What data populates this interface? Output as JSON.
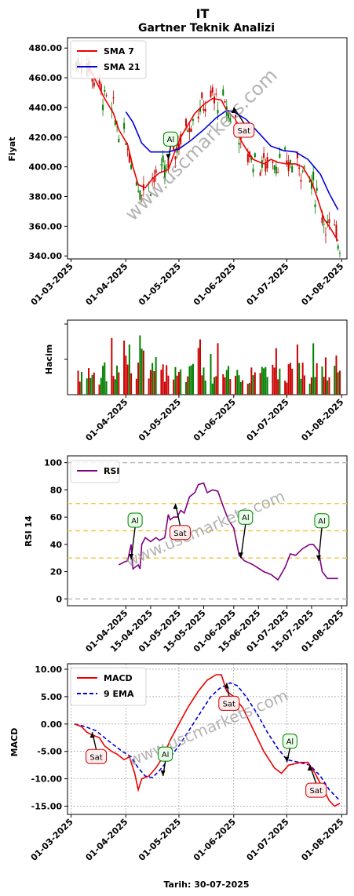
{
  "header": {
    "title": "IT",
    "subtitle": "Gartner Teknik Analizi"
  },
  "watermark": "www.uscmarkets.com",
  "footer": {
    "date_label": "Tarih: 30-07-2025"
  },
  "colors": {
    "up": "#008000",
    "down": "#cc0000",
    "sma7": "#ee0000",
    "sma21": "#0000dd",
    "rsi": "#800080",
    "macd": "#ee0000",
    "ema": "#0000dd"
  },
  "chart_data": [
    {
      "type": "candlestick",
      "ylabel": "Fiyat",
      "ylim": [
        338,
        487
      ],
      "yticks": [
        "340.00",
        "360.00",
        "380.00",
        "400.00",
        "420.00",
        "440.00",
        "460.00",
        "480.00"
      ],
      "xlim": [
        "2025-02-27",
        "2025-08-04"
      ],
      "xticks": [
        "01-03-2025",
        "01-04-2025",
        "01-05-2025",
        "01-06-2025",
        "01-07-2025",
        "01-08-2025"
      ],
      "legend": {
        "position": "top-left",
        "entries": [
          "SMA 7",
          "SMA 21"
        ]
      },
      "series": [
        {
          "name": "SMA 7",
          "points": [
            [
              "2025-03-10",
              470
            ],
            [
              "2025-03-15",
              458
            ],
            [
              "2025-03-20",
              446
            ],
            [
              "2025-03-25",
              436
            ],
            [
              "2025-03-28",
              425
            ],
            [
              "2025-04-02",
              415
            ],
            [
              "2025-04-05",
              400
            ],
            [
              "2025-04-08",
              388
            ],
            [
              "2025-04-12",
              386
            ],
            [
              "2025-04-16",
              392
            ],
            [
              "2025-04-20",
              396
            ],
            [
              "2025-04-25",
              398
            ],
            [
              "2025-04-28",
              408
            ],
            [
              "2025-05-02",
              420
            ],
            [
              "2025-05-06",
              428
            ],
            [
              "2025-05-10",
              436
            ],
            [
              "2025-05-15",
              442
            ],
            [
              "2025-05-20",
              446
            ],
            [
              "2025-05-25",
              445
            ],
            [
              "2025-05-28",
              438
            ],
            [
              "2025-06-02",
              432
            ],
            [
              "2025-06-05",
              418
            ],
            [
              "2025-06-08",
              412
            ],
            [
              "2025-06-12",
              405
            ],
            [
              "2025-06-18",
              402
            ],
            [
              "2025-06-22",
              405
            ],
            [
              "2025-06-26",
              403
            ],
            [
              "2025-07-01",
              402
            ],
            [
              "2025-07-06",
              402
            ],
            [
              "2025-07-10",
              400
            ],
            [
              "2025-07-15",
              390
            ],
            [
              "2025-07-18",
              380
            ],
            [
              "2025-07-22",
              365
            ],
            [
              "2025-07-26",
              358
            ],
            [
              "2025-07-30",
              350
            ]
          ]
        },
        {
          "name": "SMA 21",
          "points": [
            [
              "2025-04-01",
              437
            ],
            [
              "2025-04-05",
              430
            ],
            [
              "2025-04-10",
              416
            ],
            [
              "2025-04-15",
              410
            ],
            [
              "2025-04-20",
              410
            ],
            [
              "2025-04-25",
              410
            ],
            [
              "2025-05-01",
              412
            ],
            [
              "2025-05-08",
              418
            ],
            [
              "2025-05-15",
              425
            ],
            [
              "2025-05-22",
              433
            ],
            [
              "2025-05-28",
              438
            ],
            [
              "2025-06-01",
              437
            ],
            [
              "2025-06-08",
              432
            ],
            [
              "2025-06-15",
              423
            ],
            [
              "2025-06-22",
              414
            ],
            [
              "2025-06-29",
              411
            ],
            [
              "2025-07-06",
              410
            ],
            [
              "2025-07-13",
              405
            ],
            [
              "2025-07-20",
              395
            ],
            [
              "2025-07-25",
              382
            ],
            [
              "2025-07-30",
              371
            ]
          ]
        }
      ],
      "signals": [
        {
          "label": "Al",
          "date": "2025-04-25",
          "value": 405
        },
        {
          "label": "Sat",
          "date": "2025-06-01",
          "value": 440
        }
      ]
    },
    {
      "type": "bar",
      "ylabel": "Hacim",
      "xticks": [
        "01-04-2025",
        "01-05-2025",
        "01-06-2025",
        "01-07-2025",
        "01-08-2025"
      ]
    },
    {
      "type": "line",
      "ylabel": "RSI 14",
      "ylim": [
        -5,
        105
      ],
      "yticks": [
        "0",
        "20",
        "40",
        "60",
        "80",
        "100"
      ],
      "xticks": [
        "01-04-2025",
        "15-04-2025",
        "01-05-2025",
        "15-05-2025",
        "01-06-2025",
        "15-06-2025",
        "01-07-2025",
        "15-07-2025",
        "01-08-2025"
      ],
      "legend": {
        "position": "top-left",
        "entries": [
          "RSI"
        ]
      },
      "reference_lines": [
        0,
        30,
        50,
        70,
        100
      ],
      "series": [
        {
          "name": "RSI",
          "points": [
            [
              "2025-03-28",
              25
            ],
            [
              "2025-03-31",
              27
            ],
            [
              "2025-04-02",
              28
            ],
            [
              "2025-04-04",
              40
            ],
            [
              "2025-04-05",
              22
            ],
            [
              "2025-04-08",
              25
            ],
            [
              "2025-04-09",
              22
            ],
            [
              "2025-04-10",
              40
            ],
            [
              "2025-04-12",
              45
            ],
            [
              "2025-04-15",
              42
            ],
            [
              "2025-04-18",
              45
            ],
            [
              "2025-04-20",
              43
            ],
            [
              "2025-04-23",
              45
            ],
            [
              "2025-04-25",
              62
            ],
            [
              "2025-04-26",
              58
            ],
            [
              "2025-04-28",
              60
            ],
            [
              "2025-04-30",
              60
            ],
            [
              "2025-05-02",
              65
            ],
            [
              "2025-05-04",
              63
            ],
            [
              "2025-05-07",
              75
            ],
            [
              "2025-05-10",
              78
            ],
            [
              "2025-05-12",
              84
            ],
            [
              "2025-05-15",
              85
            ],
            [
              "2025-05-17",
              78
            ],
            [
              "2025-05-20",
              80
            ],
            [
              "2025-05-23",
              79
            ],
            [
              "2025-05-26",
              68
            ],
            [
              "2025-05-29",
              58
            ],
            [
              "2025-06-01",
              52
            ],
            [
              "2025-06-04",
              32
            ],
            [
              "2025-06-07",
              28
            ],
            [
              "2025-06-12",
              25
            ],
            [
              "2025-06-18",
              20
            ],
            [
              "2025-06-22",
              18
            ],
            [
              "2025-06-26",
              14
            ],
            [
              "2025-06-30",
              23
            ],
            [
              "2025-07-03",
              33
            ],
            [
              "2025-07-06",
              32
            ],
            [
              "2025-07-10",
              37
            ],
            [
              "2025-07-14",
              40
            ],
            [
              "2025-07-16",
              40
            ],
            [
              "2025-07-19",
              35
            ],
            [
              "2025-07-21",
              20
            ],
            [
              "2025-07-24",
              15
            ],
            [
              "2025-07-27",
              15
            ],
            [
              "2025-07-30",
              15
            ]
          ]
        }
      ],
      "signals": [
        {
          "label": "Al",
          "date": "2025-04-04",
          "value": 29
        },
        {
          "label": "Sat",
          "date": "2025-04-29",
          "value": 70
        },
        {
          "label": "Al",
          "date": "2025-06-05",
          "value": 30
        },
        {
          "label": "Al",
          "date": "2025-07-19",
          "value": 28
        }
      ]
    },
    {
      "type": "line",
      "ylabel": "MACD",
      "ylim": [
        -16.5,
        11
      ],
      "yticks": [
        "-15.00",
        "-10.00",
        "-5.00",
        "0.00",
        "5.00",
        "10.00"
      ],
      "xticks": [
        "01-03-2025",
        "01-04-2025",
        "01-05-2025",
        "01-06-2025",
        "01-07-2025",
        "01-08-2025"
      ],
      "xlabel": "Tarih: 30-07-2025",
      "legend": {
        "position": "top-left",
        "entries": [
          "MACD",
          "9 EMA"
        ]
      },
      "series": [
        {
          "name": "MACD",
          "points": [
            [
              "2025-03-03",
              0
            ],
            [
              "2025-03-07",
              -0.5
            ],
            [
              "2025-03-10",
              -1.5
            ],
            [
              "2025-03-13",
              -2
            ],
            [
              "2025-03-17",
              -2.5
            ],
            [
              "2025-03-20",
              -4
            ],
            [
              "2025-03-24",
              -5
            ],
            [
              "2025-03-27",
              -5.5
            ],
            [
              "2025-03-31",
              -6.5
            ],
            [
              "2025-04-03",
              -6
            ],
            [
              "2025-04-06",
              -9
            ],
            [
              "2025-04-08",
              -12
            ],
            [
              "2025-04-10",
              -10
            ],
            [
              "2025-04-14",
              -9.5
            ],
            [
              "2025-04-18",
              -8
            ],
            [
              "2025-04-22",
              -6
            ],
            [
              "2025-04-26",
              -3
            ],
            [
              "2025-05-01",
              0
            ],
            [
              "2025-05-06",
              3
            ],
            [
              "2025-05-12",
              6
            ],
            [
              "2025-05-17",
              8
            ],
            [
              "2025-05-22",
              9
            ],
            [
              "2025-05-25",
              9
            ],
            [
              "2025-05-28",
              6
            ],
            [
              "2025-06-01",
              5
            ],
            [
              "2025-06-06",
              3
            ],
            [
              "2025-06-12",
              -1
            ],
            [
              "2025-06-18",
              -5
            ],
            [
              "2025-06-24",
              -8
            ],
            [
              "2025-06-28",
              -9
            ],
            [
              "2025-07-02",
              -7.5
            ],
            [
              "2025-07-09",
              -7
            ],
            [
              "2025-07-13",
              -7
            ],
            [
              "2025-07-17",
              -9
            ],
            [
              "2025-07-21",
              -11.5
            ],
            [
              "2025-07-25",
              -14
            ],
            [
              "2025-07-28",
              -15
            ],
            [
              "2025-07-31",
              -14.5
            ]
          ]
        },
        {
          "name": "9 EMA",
          "points": [
            [
              "2025-03-03",
              0
            ],
            [
              "2025-03-07",
              -0.3
            ],
            [
              "2025-03-10",
              -0.6
            ],
            [
              "2025-03-15",
              -1.2
            ],
            [
              "2025-03-20",
              -2.5
            ],
            [
              "2025-03-25",
              -3.8
            ],
            [
              "2025-03-30",
              -5
            ],
            [
              "2025-04-04",
              -6
            ],
            [
              "2025-04-08",
              -8
            ],
            [
              "2025-04-12",
              -9.5
            ],
            [
              "2025-04-16",
              -9.8
            ],
            [
              "2025-04-20",
              -8.5
            ],
            [
              "2025-04-25",
              -6.5
            ],
            [
              "2025-05-01",
              -4
            ],
            [
              "2025-05-07",
              -1
            ],
            [
              "2025-05-13",
              2
            ],
            [
              "2025-05-19",
              5
            ],
            [
              "2025-05-24",
              6.5
            ],
            [
              "2025-05-30",
              7.5
            ],
            [
              "2025-06-03",
              7
            ],
            [
              "2025-06-08",
              5
            ],
            [
              "2025-06-14",
              2
            ],
            [
              "2025-06-20",
              -1.5
            ],
            [
              "2025-06-26",
              -4.5
            ],
            [
              "2025-07-01",
              -6.5
            ],
            [
              "2025-07-08",
              -7
            ],
            [
              "2025-07-14",
              -7.5
            ],
            [
              "2025-07-20",
              -9.5
            ],
            [
              "2025-07-25",
              -12
            ],
            [
              "2025-07-31",
              -14
            ]
          ]
        }
      ],
      "signals": [
        {
          "label": "Sat",
          "date": "2025-03-13",
          "value": -1.5
        },
        {
          "label": "Al",
          "date": "2025-04-22",
          "value": -9.5
        },
        {
          "label": "Sat",
          "date": "2025-05-28",
          "value": 7.5
        },
        {
          "label": "Al",
          "date": "2025-07-01",
          "value": -7
        },
        {
          "label": "Sat",
          "date": "2025-07-14",
          "value": -7.5
        }
      ]
    }
  ]
}
